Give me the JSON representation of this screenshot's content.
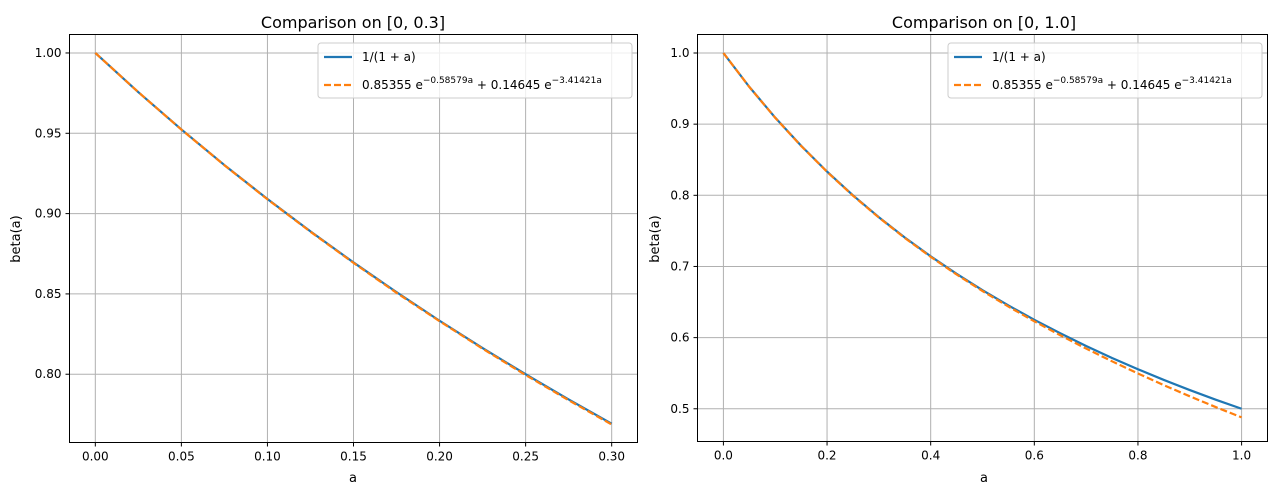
{
  "chart_data": [
    {
      "type": "line",
      "title": "Comparison on [0, 0.3]",
      "xlabel": "a",
      "ylabel": "beta(a)",
      "xlim": [
        -0.015,
        0.315
      ],
      "ylim": [
        0.7575,
        1.0115
      ],
      "xticks": [
        0.0,
        0.05,
        0.1,
        0.15,
        0.2,
        0.25,
        0.3
      ],
      "xtick_labels": [
        "0.00",
        "0.05",
        "0.10",
        "0.15",
        "0.20",
        "0.25",
        "0.30"
      ],
      "yticks": [
        0.8,
        0.85,
        0.9,
        0.95,
        1.0
      ],
      "ytick_labels": [
        "0.80",
        "0.85",
        "0.90",
        "0.95",
        "1.00"
      ],
      "grid": true,
      "legend_position": "upper right",
      "series": [
        {
          "name": "1/(1+a)",
          "color": "#1f77b4",
          "style": "solid",
          "x": [
            0.0,
            0.025,
            0.05,
            0.075,
            0.1,
            0.125,
            0.15,
            0.175,
            0.2,
            0.225,
            0.25,
            0.275,
            0.3
          ],
          "y": [
            1.0,
            0.9756,
            0.9524,
            0.9302,
            0.9091,
            0.8889,
            0.8696,
            0.8511,
            0.8333,
            0.8163,
            0.8,
            0.7843,
            0.7692
          ]
        },
        {
          "name": "0.85355 e^{-0.58579a} + 0.14645 e^{-3.41421a}",
          "color": "#ff7f0e",
          "style": "dashed",
          "x": [
            0.0,
            0.025,
            0.05,
            0.075,
            0.1,
            0.125,
            0.15,
            0.175,
            0.2,
            0.225,
            0.25,
            0.275,
            0.3
          ],
          "y": [
            1.0,
            0.9756,
            0.9523,
            0.9301,
            0.9089,
            0.8887,
            0.8693,
            0.8507,
            0.833,
            0.8159,
            0.7995,
            0.7838,
            0.7687
          ]
        }
      ]
    },
    {
      "type": "line",
      "title": "Comparison on [0, 1.0]",
      "xlabel": "a",
      "ylabel": "beta(a)",
      "xlim": [
        -0.05,
        1.05
      ],
      "ylim": [
        0.454,
        1.026
      ],
      "xticks": [
        0.0,
        0.2,
        0.4,
        0.6,
        0.8,
        1.0
      ],
      "xtick_labels": [
        "0.0",
        "0.2",
        "0.4",
        "0.6",
        "0.8",
        "1.0"
      ],
      "yticks": [
        0.5,
        0.6,
        0.7,
        0.8,
        0.9,
        1.0
      ],
      "ytick_labels": [
        "0.5",
        "0.6",
        "0.7",
        "0.8",
        "0.9",
        "1.0"
      ],
      "grid": true,
      "legend_position": "upper right",
      "series": [
        {
          "name": "1/(1+a)",
          "color": "#1f77b4",
          "style": "solid",
          "x": [
            0.0,
            0.05,
            0.1,
            0.15,
            0.2,
            0.25,
            0.3,
            0.35,
            0.4,
            0.45,
            0.5,
            0.55,
            0.6,
            0.65,
            0.7,
            0.75,
            0.8,
            0.85,
            0.9,
            0.95,
            1.0
          ],
          "y": [
            1.0,
            0.9524,
            0.9091,
            0.8696,
            0.8333,
            0.8,
            0.7692,
            0.7407,
            0.7143,
            0.6897,
            0.6667,
            0.6452,
            0.625,
            0.6061,
            0.5882,
            0.5714,
            0.5556,
            0.5405,
            0.5263,
            0.5128,
            0.5
          ]
        },
        {
          "name": "0.85355 e^{-0.58579a} + 0.14645 e^{-3.41421a}",
          "color": "#ff7f0e",
          "style": "dashed",
          "x": [
            0.0,
            0.05,
            0.1,
            0.15,
            0.2,
            0.25,
            0.3,
            0.35,
            0.4,
            0.45,
            0.5,
            0.55,
            0.6,
            0.65,
            0.7,
            0.75,
            0.8,
            0.85,
            0.9,
            0.95,
            1.0
          ],
          "y": [
            1.0,
            0.9523,
            0.9089,
            0.8693,
            0.833,
            0.7995,
            0.7687,
            0.7401,
            0.7135,
            0.6887,
            0.6655,
            0.6436,
            0.6229,
            0.6033,
            0.5846,
            0.5667,
            0.5496,
            0.5332,
            0.5175,
            0.5024,
            0.4879
          ]
        }
      ]
    }
  ],
  "legend_labels": {
    "blue": "1/(1 + a)",
    "orange_coef1": "0.85355",
    "orange_exp1": "−0.58579a",
    "orange_plus": " + 0.14645",
    "orange_exp2": "−3.41421a"
  }
}
